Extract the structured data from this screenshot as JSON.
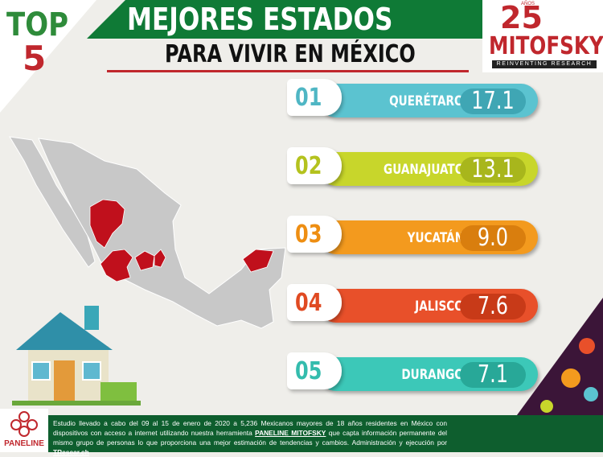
{
  "header": {
    "badge_top": "TOP",
    "badge_number": "5",
    "title": "MEJORES ESTADOS",
    "subtitle": "PARA VIVIR EN MÉXICO"
  },
  "logo": {
    "anniversary": "25",
    "anniversary_word": "AÑOS",
    "brand": "MITOFSKY",
    "tagline": "REINVENTING RESEARCH"
  },
  "ranking": [
    {
      "rank": "01",
      "state": "QUERÉTARO",
      "value": "17.1"
    },
    {
      "rank": "02",
      "state": "GUANAJUATO",
      "value": "13.1"
    },
    {
      "rank": "03",
      "state": "YUCATÁN",
      "value": "9.0"
    },
    {
      "rank": "04",
      "state": "JALISCO",
      "value": "7.6"
    },
    {
      "rank": "05",
      "state": "DURANGO",
      "value": "7.1"
    }
  ],
  "footer": {
    "logo": "PANELINE",
    "note_part1": "Estudio llevado a cabo del 09 al 15 de enero de 2020 a 5,236 Mexicanos mayores de 18 años residentes en México con dispositivos con acceso a internet utilizando nuestra herramienta ",
    "note_highlight1": "PANELINE MITOFSKY",
    "note_part2": " que capta información permanente del mismo grupo de personas lo que proporciona una mejor estimación de tendencias y cambios. Administración y ejecución por ",
    "note_highlight2": "TResear.ch"
  }
}
